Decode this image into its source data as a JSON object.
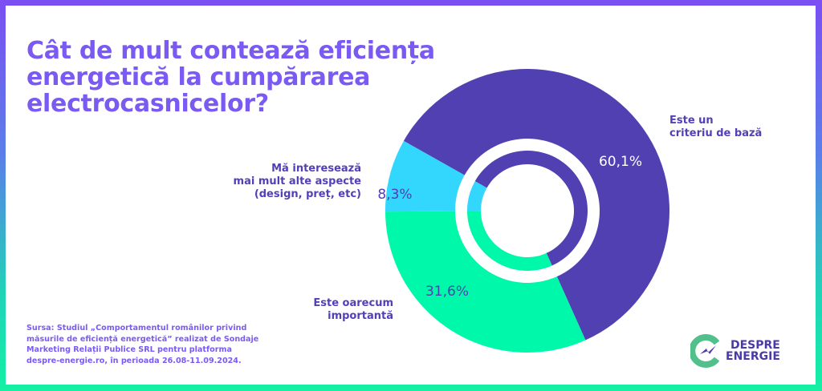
{
  "title_lines": [
    "Cât de mult contează eficiența",
    "energetică la cumpărarea",
    "electrocasnicelor?"
  ],
  "chart_data": {
    "type": "pie",
    "variant": "donut",
    "slices": [
      {
        "label": "Este un criteriu de bază",
        "label_lines": [
          "Este un",
          "criteriu de bază"
        ],
        "value": 60.1,
        "value_label": "60,1%",
        "color": "#5140b1"
      },
      {
        "label": "Este oarecum importantă",
        "label_lines": [
          "Este oarecum",
          "importantă"
        ],
        "value": 31.6,
        "value_label": "31,6%",
        "color": "#00f8aa"
      },
      {
        "label": "Mă interesează mai mult alte aspecte (design, preț, etc)",
        "label_lines": [
          "Mă interesează",
          "mai mult alte aspecte",
          "(design, preț, etc)"
        ],
        "value": 8.3,
        "value_label": "8,3%",
        "color": "#33d6fd"
      }
    ]
  },
  "source_lines": [
    "Sursa: Studiul „Comportamentul românilor privind",
    "măsurile de eficiență energetică” realizat de Sondaje",
    "Marketing Relații Publice SRL pentru platforma",
    "despre-energie.ro, în perioada 26.08-11.09.2024."
  ],
  "logo": {
    "line1": "DESPRE",
    "line2": "ENERGIE",
    "color_mark": "#52c08a",
    "color_text": "#4a3aa8"
  }
}
